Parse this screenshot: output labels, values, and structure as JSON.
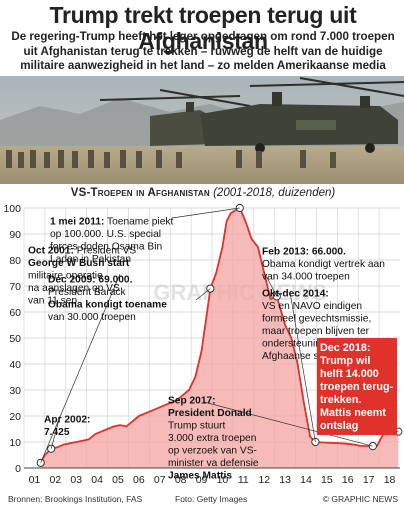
{
  "header": {
    "title": "Trump trekt troepen terug uit Afghanistan",
    "intro": "De regering-Trump heeft het leger opgedragen om rond 7.000 troepen uit Afghanistan terug te trekken – ruwweg de helft van de huidige militaire aanwezigheid in het land – zo melden Amerikaanse media"
  },
  "chart_title": {
    "main": "VS-Troepen in Afghanistan",
    "sub": "(2001-2018, duizenden)"
  },
  "watermark": "GRAPHIC NEWS",
  "colors": {
    "line": "#e0312b",
    "area": "#f3a3a0",
    "area_top": "#f7c1bf",
    "grid": "#cfcfcf",
    "highlight_box": "#e0312b",
    "marker": "#ffffff"
  },
  "chart_data": {
    "type": "area",
    "title": "VS-Troepen in Afghanistan",
    "subtitle": "(2001-2018, duizenden)",
    "xlabel": "",
    "ylabel": "",
    "x_ticks": [
      "01",
      "02",
      "03",
      "04",
      "05",
      "06",
      "07",
      "08",
      "09",
      "10",
      "11",
      "12",
      "13",
      "14",
      "15",
      "16",
      "17",
      "18"
    ],
    "y_ticks": [
      0,
      10,
      20,
      30,
      40,
      50,
      60,
      70,
      80,
      90,
      100
    ],
    "ylim": [
      0,
      100
    ],
    "xlim": [
      2001.0,
      2019.0
    ],
    "grid": true,
    "series": [
      {
        "x": [
          2001.8,
          2002.0,
          2002.3,
          2002.6,
          2002.9,
          2003.2,
          2003.5,
          2003.8,
          2004.1,
          2004.4,
          2004.7,
          2005.0,
          2005.3,
          2005.6,
          2005.9,
          2006.2,
          2006.5,
          2006.8,
          2007.1,
          2007.4,
          2007.7,
          2008.0,
          2008.3,
          2008.6,
          2008.9,
          2009.2,
          2009.5,
          2009.8,
          2009.92,
          2010.2,
          2010.5,
          2010.7,
          2010.9,
          2011.1,
          2011.33,
          2011.6,
          2011.9,
          2012.2,
          2012.5,
          2012.8,
          2013.1,
          2013.5,
          2013.8,
          2014.1,
          2014.4,
          2014.7,
          2014.95,
          2015.3,
          2015.6,
          2015.9,
          2016.2,
          2016.5,
          2016.8,
          2017.1,
          2017.4,
          2017.7,
          2017.9,
          2018.2,
          2018.5,
          2018.92
        ],
        "values": [
          2,
          5,
          7.4,
          8,
          9,
          9.5,
          10,
          10.5,
          11,
          13,
          14,
          15,
          16,
          16.5,
          16,
          18,
          20,
          21,
          22,
          23,
          24,
          25,
          26,
          28,
          30,
          35,
          45,
          62,
          69,
          75,
          85,
          95,
          98,
          99,
          100,
          95,
          88,
          85,
          75,
          65,
          66,
          55,
          50,
          40,
          25,
          12,
          10,
          9.8,
          9.7,
          9.6,
          9.5,
          9.3,
          9.0,
          8.5,
          8.4,
          8.4,
          8.5,
          13,
          14,
          14
        ]
      }
    ],
    "annotations": [
      {
        "lines": [
          "Oct 2001: President VS",
          "George W Bush start",
          "militaire operatie",
          "na aanslagen op VS",
          "van 11 sep"
        ]
      },
      {
        "lines": [
          "Apr 2002:",
          "7.425"
        ]
      },
      {
        "lines": [
          "1 mei 2011: Toename piekt",
          "op 100.000. U.S. special",
          "forces doden Osama Bin",
          "Laden in Pakistan"
        ]
      },
      {
        "lines": [
          "Dec 2009: 69.000.",
          "President Barack",
          "Obama kondigt toename",
          "van 30.000 troepen"
        ]
      },
      {
        "lines": [
          "Feb 2013: 66.000.",
          "Obama kondigt vertrek aan",
          "van 34.000 troepen"
        ]
      },
      {
        "lines": [
          "Okt-dec 2014:",
          "VS en NAVO eindigen",
          "formeel gevechtsmissie,",
          "maar troepen blijven ter",
          "ondersteuning van",
          "Afghaanse strijdmacht"
        ]
      },
      {
        "lines": [
          "Sep 2017:",
          "President Donald",
          "Trump stuurt",
          "3.000 extra troepen",
          "op verzoek van VS-",
          "minister va defensie",
          "James Mattis"
        ]
      },
      {
        "lines": [
          "Dec 2018:",
          "Trump wil",
          "helft 14.000",
          "troepen terug-",
          "trekken.",
          "Mattis neemt",
          "ontslag"
        ]
      }
    ]
  },
  "footer": {
    "source": "Bronnen: Brookings Institution, FAS",
    "credit": "Foto: Getty Images",
    "brand": "© GRAPHIC NEWS"
  }
}
